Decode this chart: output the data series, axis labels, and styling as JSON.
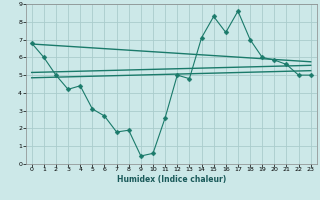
{
  "bg_color": "#cce8e8",
  "grid_color": "#aacccc",
  "line_color": "#1a7a6a",
  "xlabel": "Humidex (Indice chaleur)",
  "xlim": [
    -0.5,
    23.5
  ],
  "ylim": [
    0,
    9
  ],
  "xticks": [
    0,
    1,
    2,
    3,
    4,
    5,
    6,
    7,
    8,
    9,
    10,
    11,
    12,
    13,
    14,
    15,
    16,
    17,
    18,
    19,
    20,
    21,
    22,
    23
  ],
  "yticks": [
    0,
    1,
    2,
    3,
    4,
    5,
    6,
    7,
    8,
    9
  ],
  "main_x": [
    0,
    1,
    2,
    3,
    4,
    5,
    6,
    7,
    8,
    9,
    10,
    11,
    12,
    13,
    14,
    15,
    16,
    17,
    18,
    19,
    20,
    21,
    22,
    23
  ],
  "main_y": [
    6.8,
    6.0,
    5.0,
    4.2,
    4.4,
    3.1,
    2.7,
    1.8,
    1.9,
    0.45,
    0.6,
    2.6,
    5.0,
    4.8,
    7.1,
    8.3,
    7.4,
    8.6,
    7.0,
    6.0,
    5.85,
    5.6,
    5.0,
    5.0
  ],
  "line2_x": [
    0,
    23
  ],
  "line2_y": [
    6.75,
    5.75
  ],
  "line3_x": [
    0,
    23
  ],
  "line3_y": [
    5.15,
    5.55
  ],
  "line4_x": [
    0,
    23
  ],
  "line4_y": [
    4.85,
    5.25
  ],
  "markersize": 2.5
}
